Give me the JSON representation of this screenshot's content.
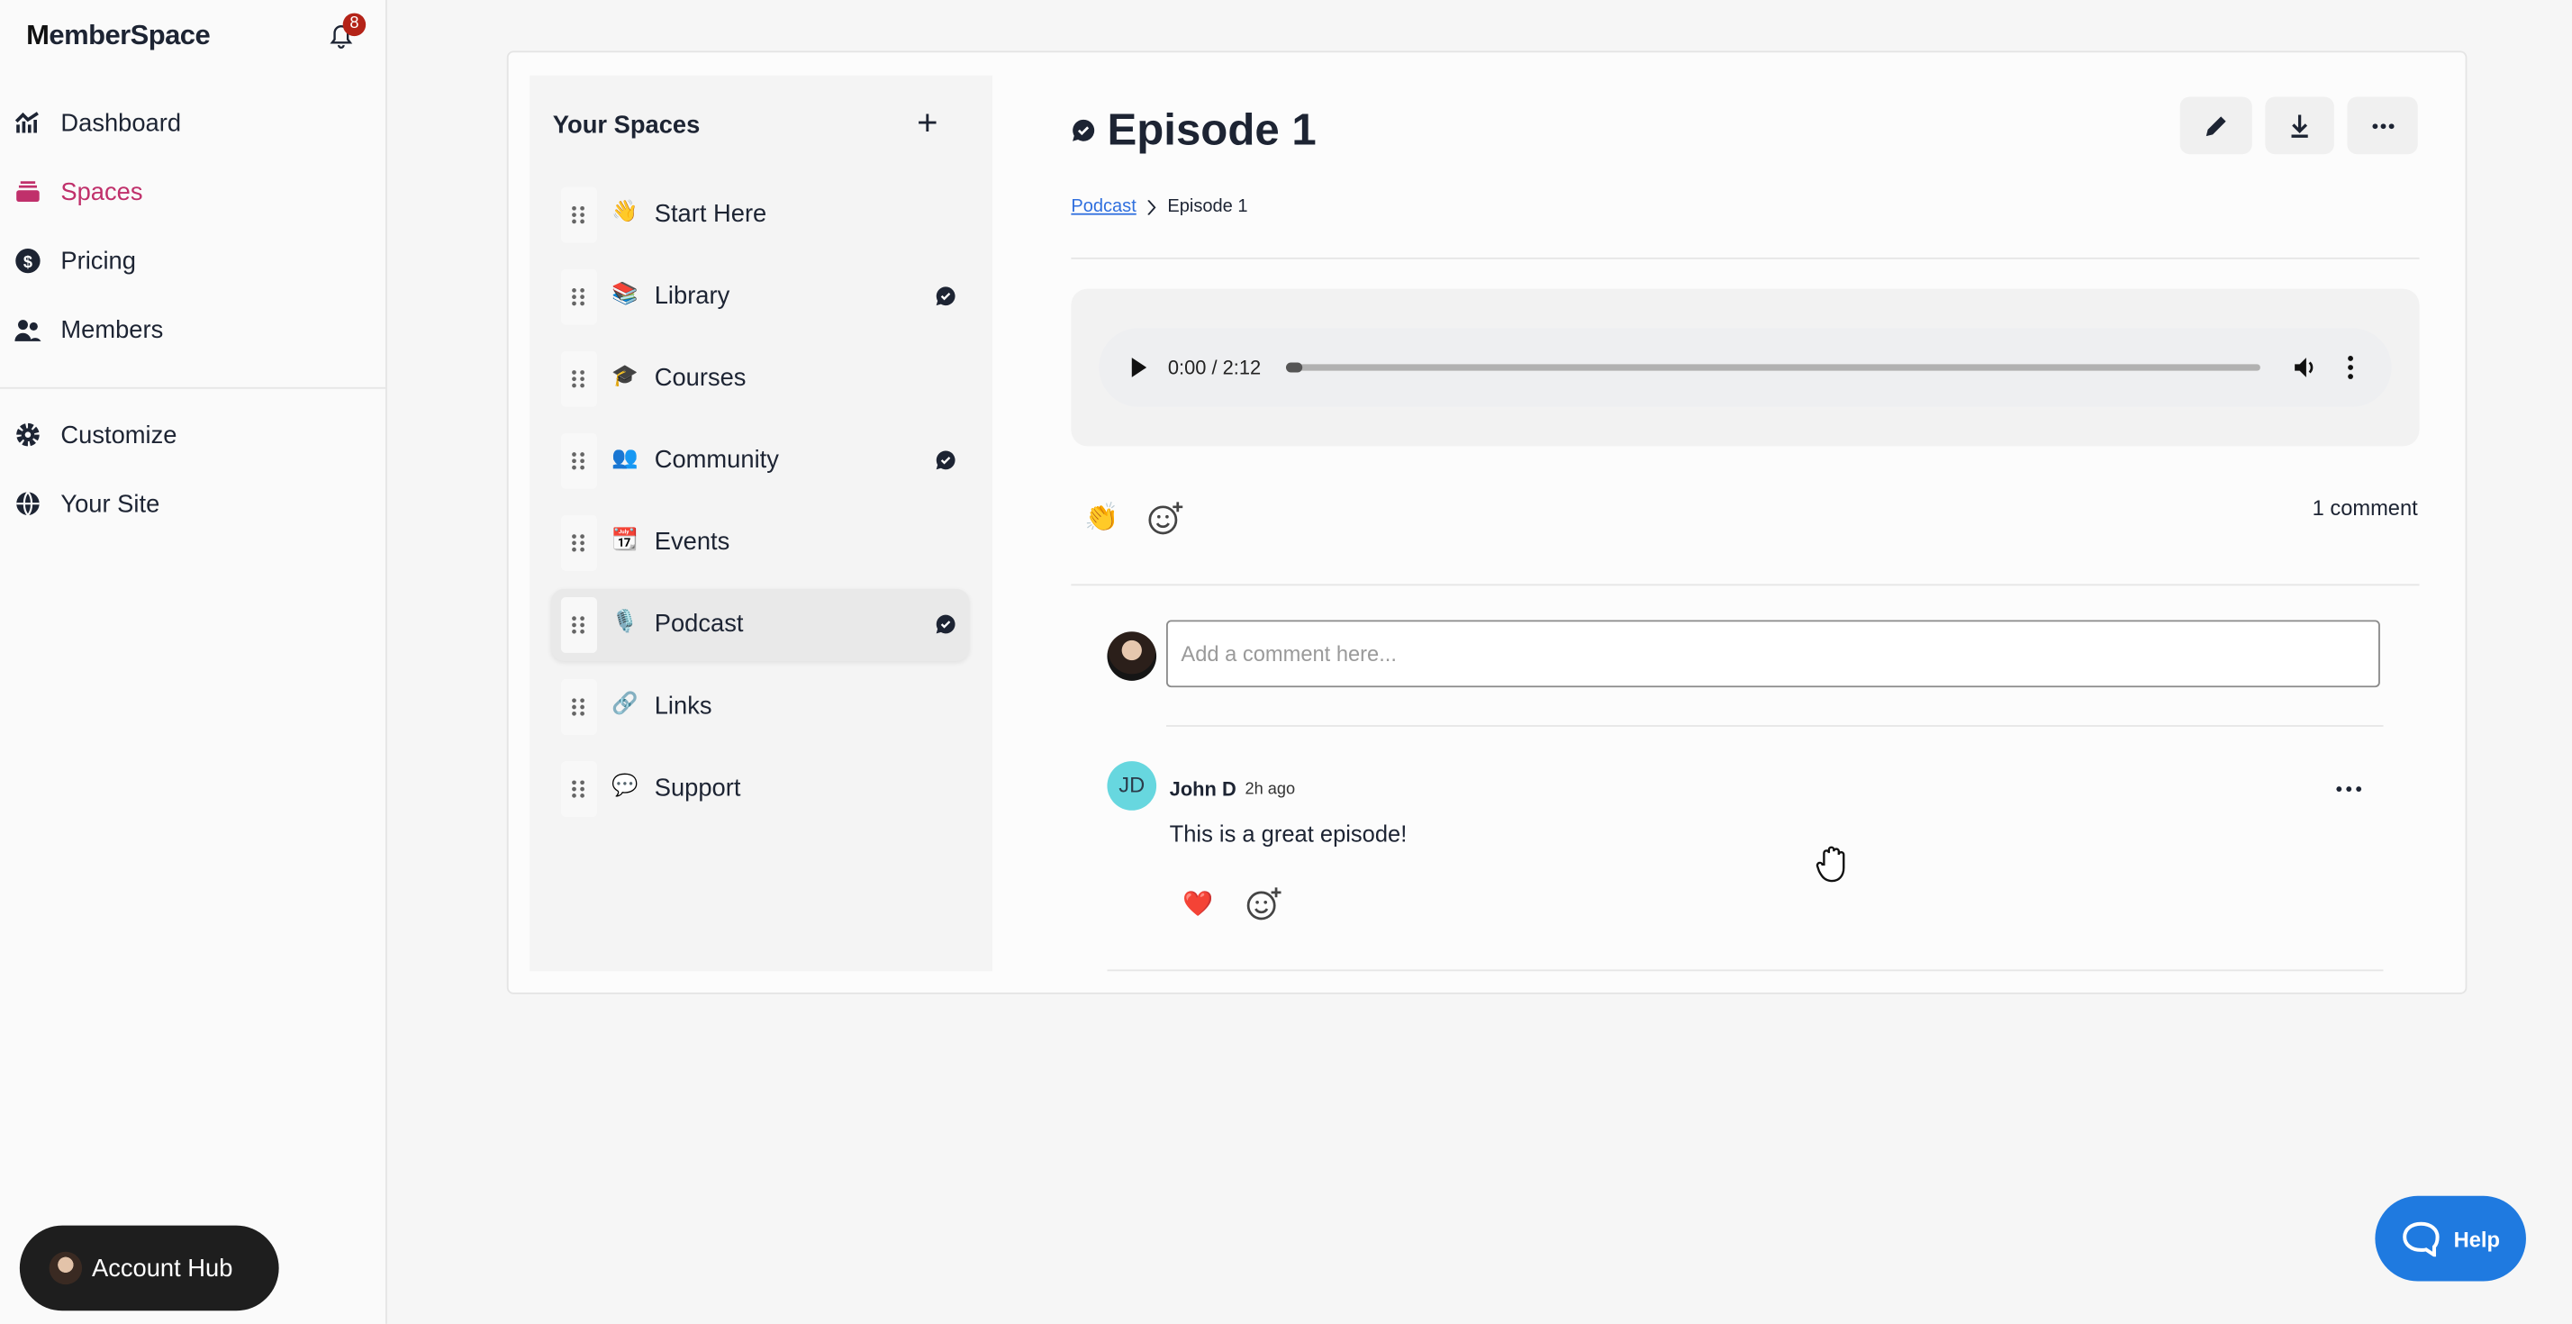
{
  "app": {
    "name_first": "M",
    "name_rest": "emberSpace",
    "notifications": "8"
  },
  "sidebar": {
    "items": [
      {
        "label": "Dashboard",
        "icon": "chart-icon"
      },
      {
        "label": "Spaces",
        "icon": "spaces-icon",
        "active": true
      },
      {
        "label": "Pricing",
        "icon": "dollar-icon"
      },
      {
        "label": "Members",
        "icon": "users-icon"
      },
      {
        "label": "Customize",
        "icon": "gear-icon"
      },
      {
        "label": "Your Site",
        "icon": "globe-icon"
      }
    ],
    "account_hub": "Account Hub"
  },
  "spaces": {
    "title": "Your Spaces",
    "items": [
      {
        "emoji": "👋",
        "label": "Start Here",
        "comments": false
      },
      {
        "emoji": "📚",
        "label": "Library",
        "comments": true
      },
      {
        "emoji": "🎓",
        "label": "Courses",
        "comments": false
      },
      {
        "emoji": "👥",
        "label": "Community",
        "comments": true
      },
      {
        "emoji": "📆",
        "label": "Events",
        "comments": false
      },
      {
        "emoji": "🎙️",
        "label": "Podcast",
        "comments": true,
        "active": true
      },
      {
        "emoji": "🔗",
        "label": "Links",
        "comments": false
      },
      {
        "emoji": "💬",
        "label": "Support",
        "comments": false
      }
    ]
  },
  "content": {
    "title": "Episode 1",
    "breadcrumb": {
      "parent": "Podcast",
      "current": "Episode 1"
    },
    "audio": {
      "time": "0:00 / 2:12",
      "progress": 0
    },
    "reactions": {
      "clap": "👏"
    },
    "comment_count": "1 comment",
    "comment_input": {
      "placeholder": "Add a comment here...",
      "value": ""
    },
    "comments": [
      {
        "initials": "JD",
        "author": "John D",
        "time": "2h ago",
        "text": "This is a great episode!",
        "reaction": "❤️"
      }
    ]
  },
  "help": {
    "label": "Help"
  },
  "colors": {
    "accent": "#c0306b",
    "help": "#1f7ae0",
    "avatar": "#67d7df",
    "badge": "#b42318"
  }
}
